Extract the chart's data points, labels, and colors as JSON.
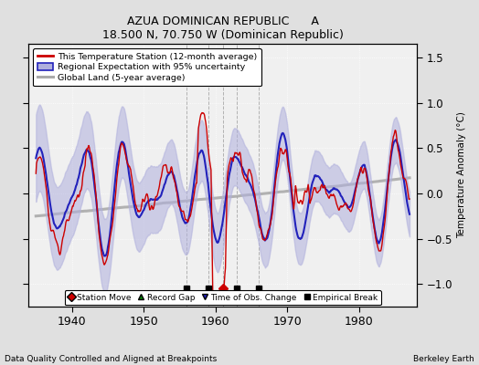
{
  "title": "AZUA DOMINICAN REPUBLIC      A",
  "subtitle": "18.500 N, 70.750 W (Dominican Republic)",
  "xlabel_left": "Data Quality Controlled and Aligned at Breakpoints",
  "xlabel_right": "Berkeley Earth",
  "ylabel": "Temperature Anomaly (°C)",
  "ylim": [
    -1.25,
    1.65
  ],
  "xlim": [
    1934,
    1988
  ],
  "yticks": [
    -1,
    -0.5,
    0,
    0.5,
    1,
    1.5
  ],
  "xticks": [
    1940,
    1950,
    1960,
    1970,
    1980
  ],
  "bg_color": "#e0e0e0",
  "plot_bg_color": "#f0f0f0",
  "red_color": "#cc0000",
  "blue_color": "#2222bb",
  "blue_fill_color": "#b0b0dd",
  "gray_color": "#aaaaaa",
  "empirical_break_years": [
    1956,
    1959,
    1963,
    1966
  ],
  "station_move_years": [
    1961
  ],
  "legend_labels": [
    "This Temperature Station (12-month average)",
    "Regional Expectation with 95% uncertainty",
    "Global Land (5-year average)"
  ],
  "bottom_legend": [
    "Station Move",
    "Record Gap",
    "Time of Obs. Change",
    "Empirical Break"
  ]
}
